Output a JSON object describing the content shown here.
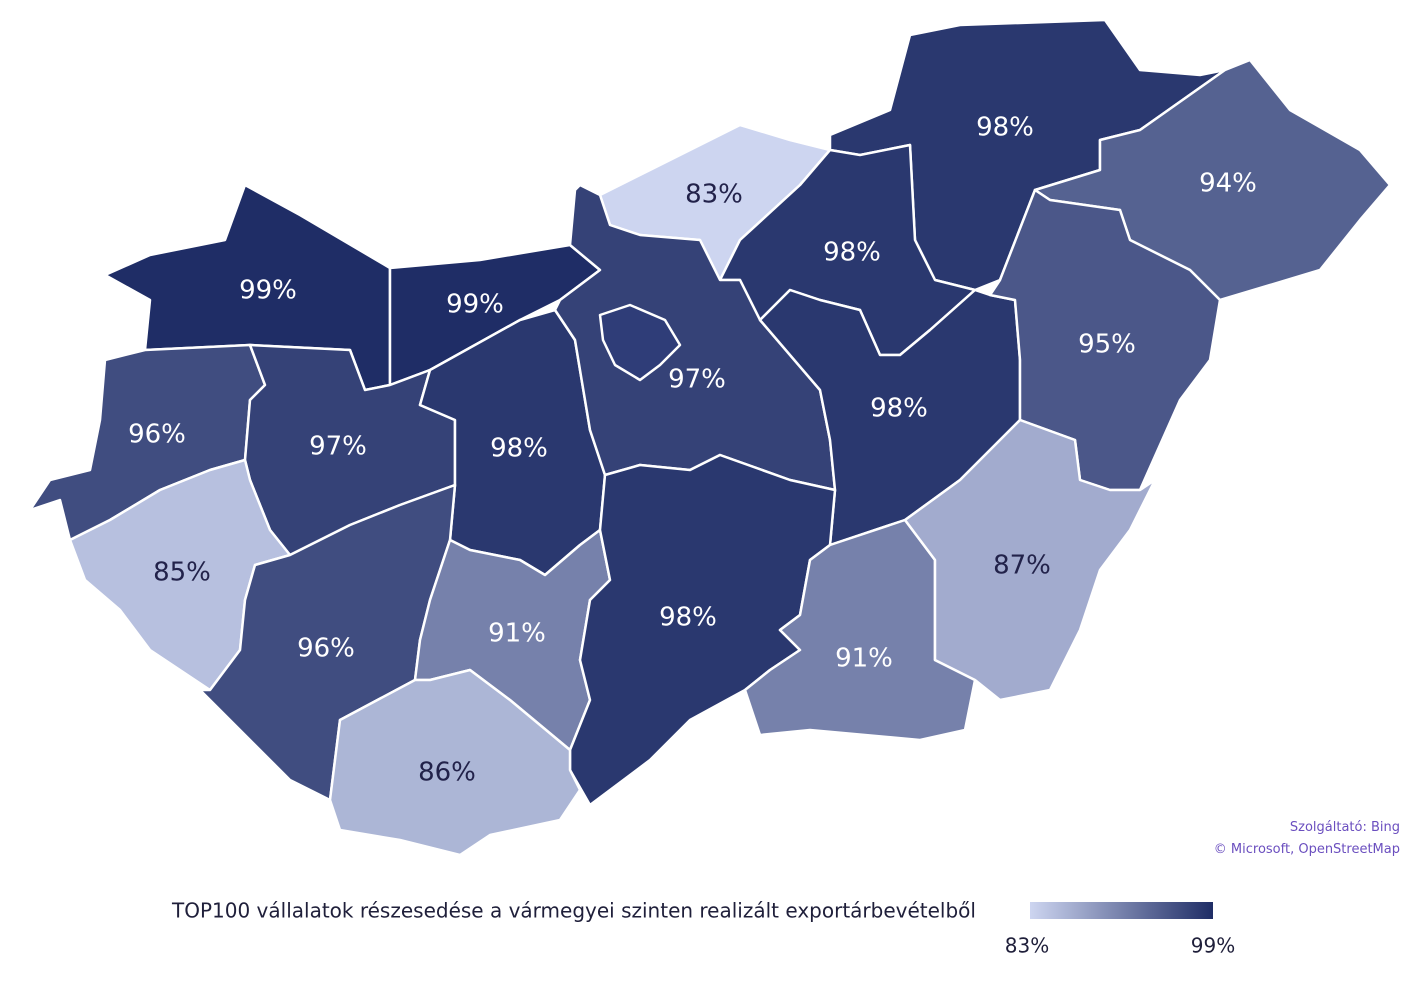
{
  "chart_data": {
    "type": "choropleth",
    "title": "TOP100 vállalatok részesedése a vármegyei szinten realizált exportárbevételből",
    "values": [
      99,
      99,
      83,
      98,
      98,
      94,
      96,
      97,
      98,
      97,
      98,
      95,
      85,
      96,
      91,
      98,
      91,
      87,
      86
    ],
    "value_labels": [
      "99%",
      "99%",
      "83%",
      "98%",
      "98%",
      "94%",
      "96%",
      "97%",
      "98%",
      "97%",
      "98%",
      "95%",
      "85%",
      "96%",
      "91%",
      "98%",
      "91%",
      "87%",
      "86%"
    ],
    "colorscale": {
      "min_color": "#cdd5f0",
      "max_color": "#1f2d66"
    },
    "legend_ticks": [
      {
        "value": 83,
        "label": "83%"
      },
      {
        "value": 99,
        "label": "99%"
      }
    ],
    "attribution": [
      "Szolgáltató: Bing",
      "© Microsoft, OpenStreetMap"
    ]
  }
}
